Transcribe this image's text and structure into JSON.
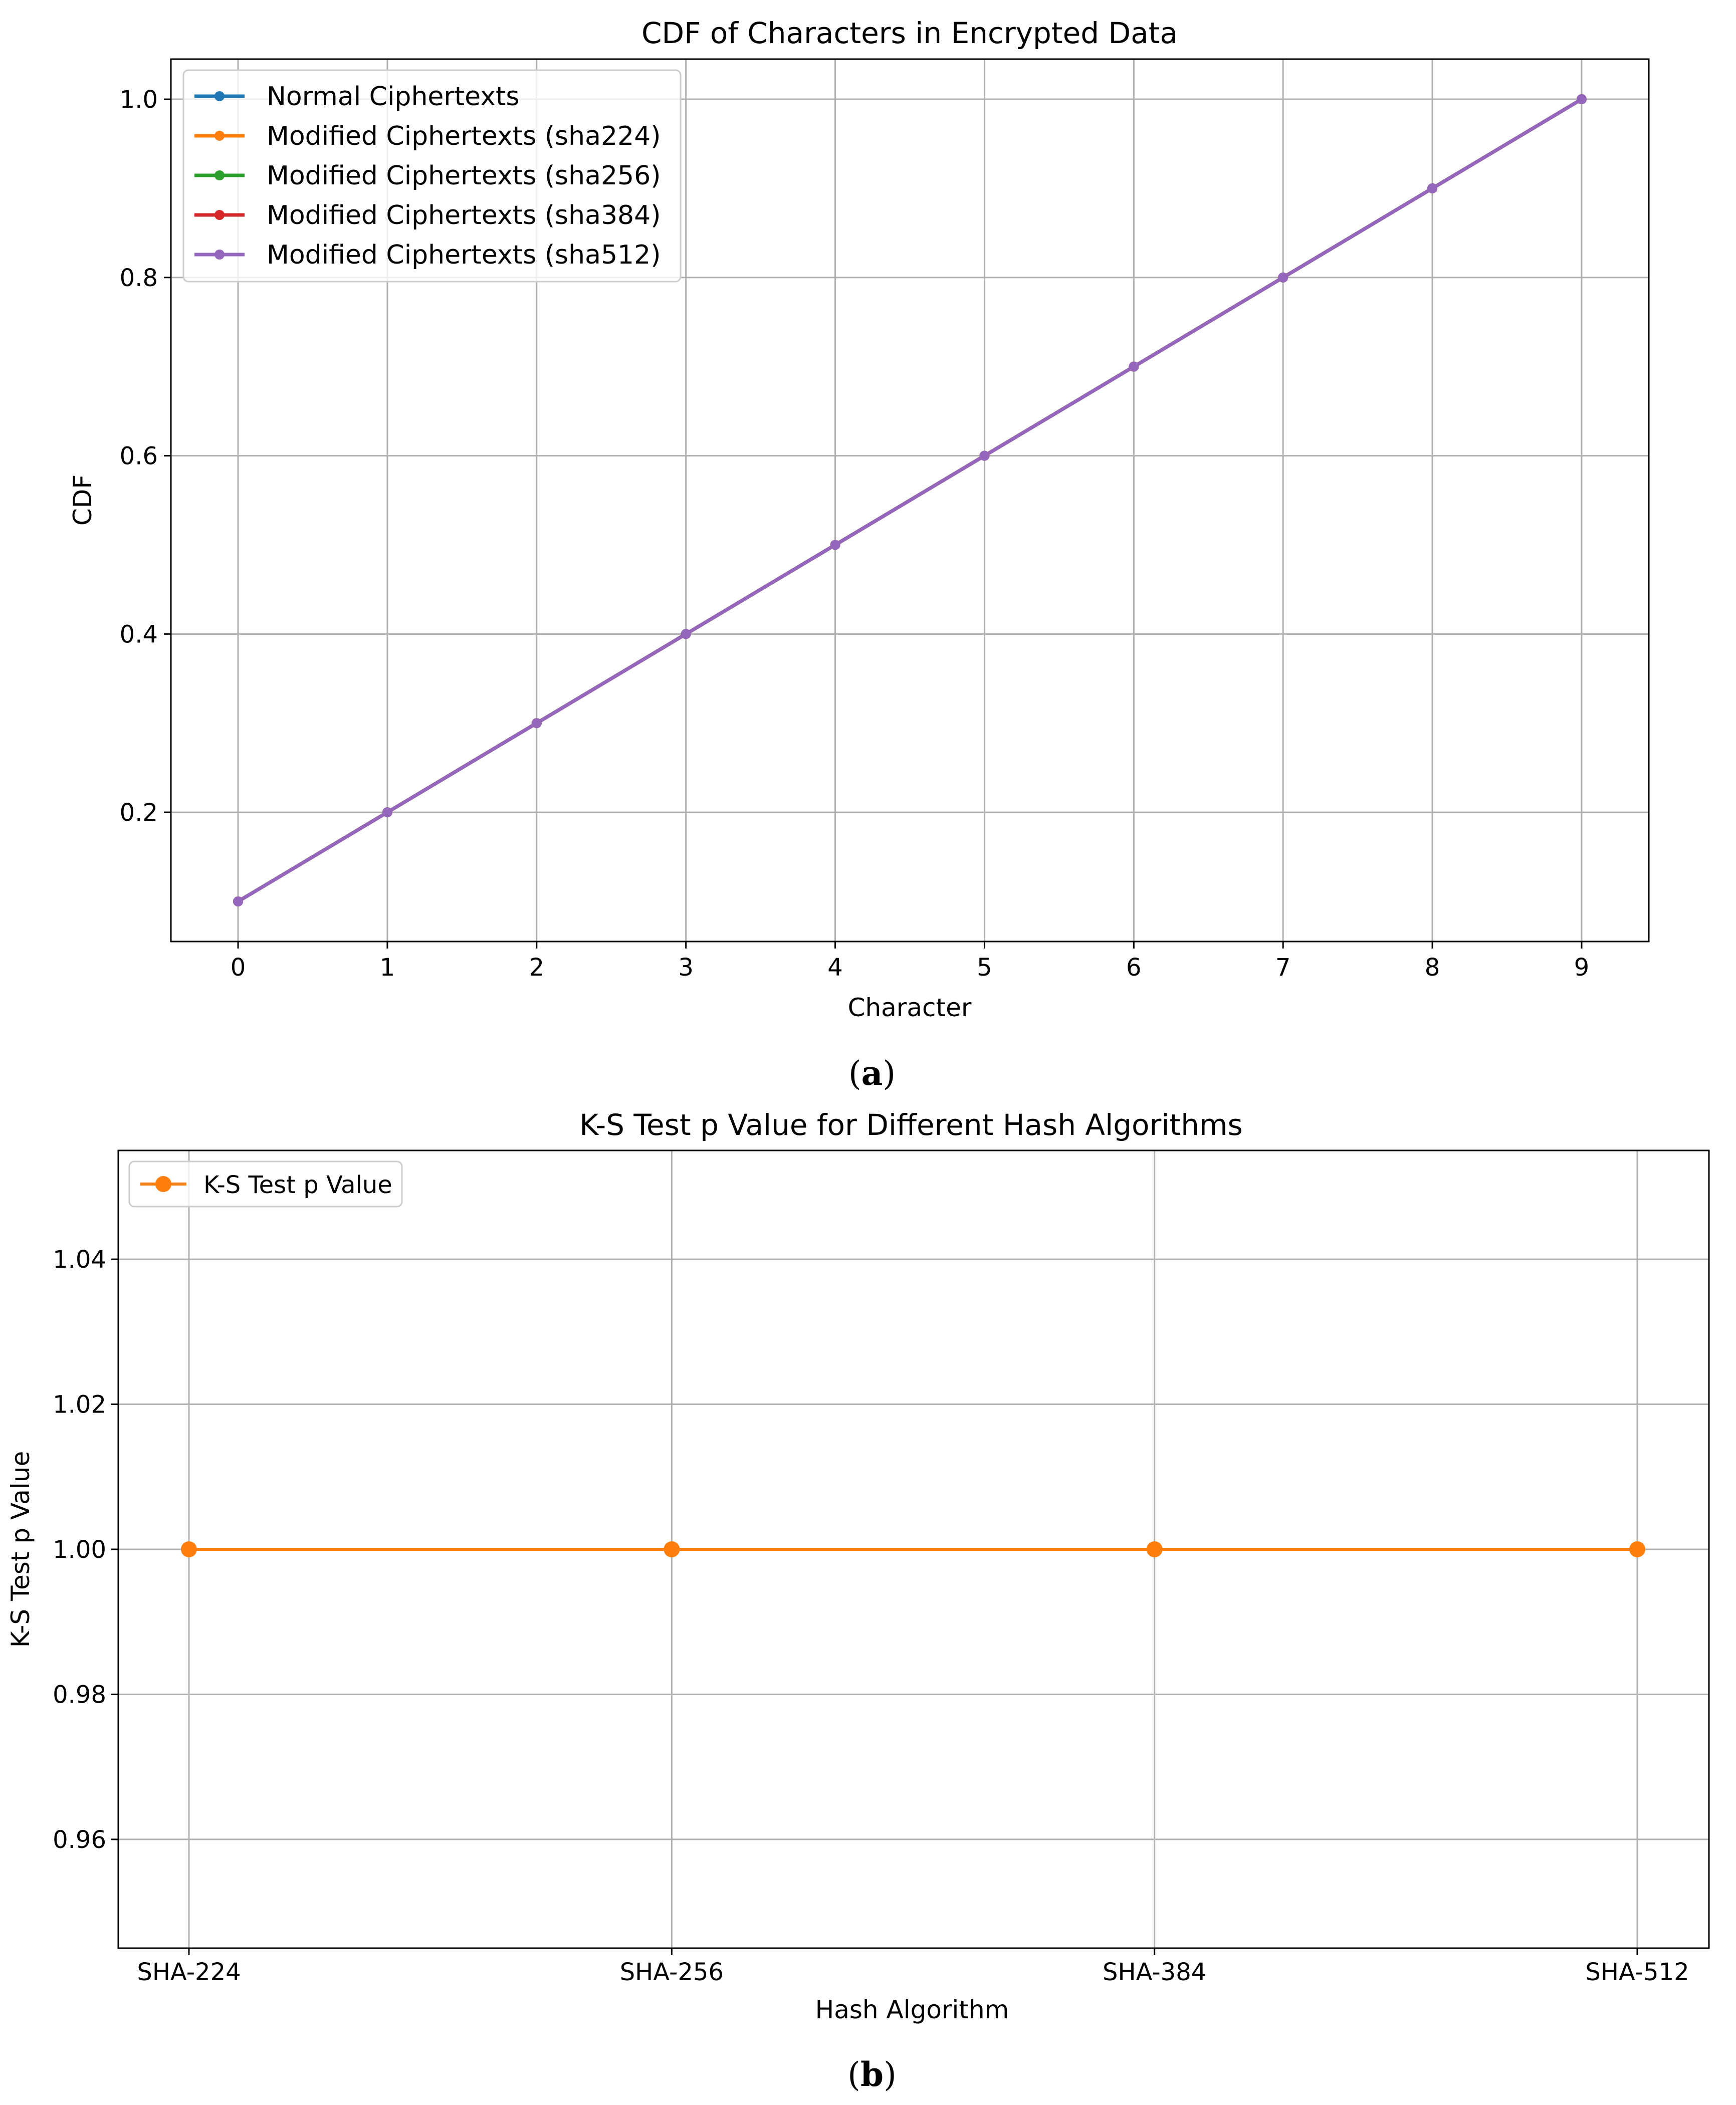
{
  "chart_data": [
    {
      "type": "line",
      "title": "CDF of Characters in Encrypted Data",
      "xlabel": "Character",
      "ylabel": "CDF",
      "x": [
        0,
        1,
        2,
        3,
        4,
        5,
        6,
        7,
        8,
        9
      ],
      "xticks": [
        "0",
        "1",
        "2",
        "3",
        "4",
        "5",
        "6",
        "7",
        "8",
        "9"
      ],
      "yticks": [
        "0.2",
        "0.4",
        "0.6",
        "0.8",
        "1.0"
      ],
      "ylim": [
        0.055,
        1.045
      ],
      "xlim": [
        -0.45,
        9.45
      ],
      "grid": true,
      "legend_position": "top-left",
      "series": [
        {
          "name": "Normal Ciphertexts",
          "color": "#1f77b4",
          "values": [
            0.1,
            0.2,
            0.3,
            0.4,
            0.5,
            0.6,
            0.7,
            0.8,
            0.9,
            1.0
          ]
        },
        {
          "name": "Modified Ciphertexts (sha224)",
          "color": "#ff7f0e",
          "values": [
            0.1,
            0.2,
            0.3,
            0.4,
            0.5,
            0.6,
            0.7,
            0.8,
            0.9,
            1.0
          ]
        },
        {
          "name": "Modified Ciphertexts (sha256)",
          "color": "#2ca02c",
          "values": [
            0.1,
            0.2,
            0.3,
            0.4,
            0.5,
            0.6,
            0.7,
            0.8,
            0.9,
            1.0
          ]
        },
        {
          "name": "Modified Ciphertexts (sha384)",
          "color": "#d62728",
          "values": [
            0.1,
            0.2,
            0.3,
            0.4,
            0.5,
            0.6,
            0.7,
            0.8,
            0.9,
            1.0
          ]
        },
        {
          "name": "Modified Ciphertexts (sha512)",
          "color": "#9467bd",
          "values": [
            0.1,
            0.2,
            0.3,
            0.4,
            0.5,
            0.6,
            0.7,
            0.8,
            0.9,
            1.0
          ]
        }
      ],
      "caption": {
        "open": "(",
        "letter": "a",
        "close": ")"
      }
    },
    {
      "type": "line",
      "title": "K-S Test p Value for Different Hash Algorithms",
      "xlabel": "Hash Algorithm",
      "ylabel": "K-S Test p Value",
      "ylabel_color": "#ff7f0e",
      "categories": [
        "SHA-224",
        "SHA-256",
        "SHA-384",
        "SHA-512"
      ],
      "yticks": [
        "0.96",
        "0.98",
        "1.00",
        "1.02",
        "1.04"
      ],
      "ylim": [
        0.945,
        1.055
      ],
      "grid": true,
      "legend_position": "top-left",
      "series": [
        {
          "name": "K-S Test p Value",
          "color": "#ff7f0e",
          "values": [
            1.0,
            1.0,
            1.0,
            1.0
          ]
        }
      ],
      "caption": {
        "open": "(",
        "letter": "b",
        "close": ")"
      }
    }
  ]
}
